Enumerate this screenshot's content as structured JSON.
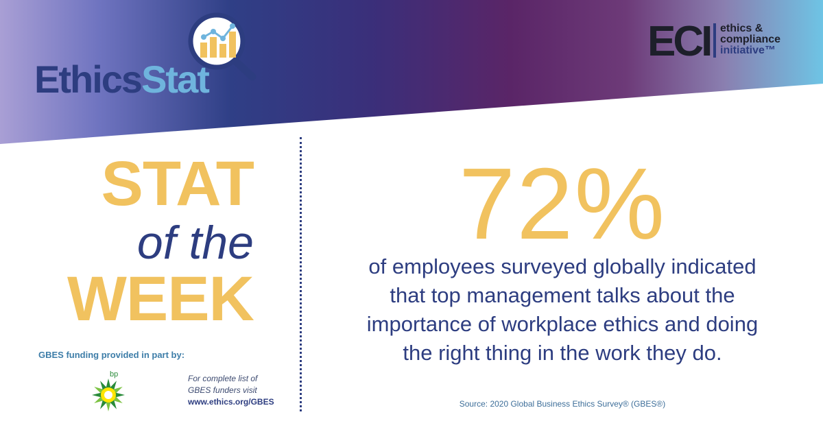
{
  "brand": {
    "logo_word_1": "Ethics",
    "logo_word_2": "Stat",
    "partner_letters": "ECI",
    "partner_name_lines": [
      "ethics &",
      "compliance",
      "initiative™"
    ]
  },
  "headline": {
    "line1": "STAT",
    "line2": "of the",
    "line3": "WEEK"
  },
  "stat": {
    "value": "72%",
    "description_lines": [
      "of employees surveyed globally indicated",
      "that top management talks about the",
      "importance of workplace ethics and doing",
      "the right thing in the work they do."
    ],
    "source": "Source: 2020 Global Business Ethics Survey® (GBES®)"
  },
  "funding": {
    "label": "GBES funding provided in part by:",
    "funder_logo_text": "bp",
    "funder_logo_icon": "bp-helios-icon",
    "note_lines": [
      "For complete list of",
      "GBES funders visit"
    ],
    "url": "www.ethics.org/GBES"
  },
  "colors": {
    "navy": "#2d3d80",
    "gold": "#f1c25f",
    "light_blue": "#6fb4dd",
    "purple": "#5a2567",
    "bp_green": "#2a8b3a"
  }
}
